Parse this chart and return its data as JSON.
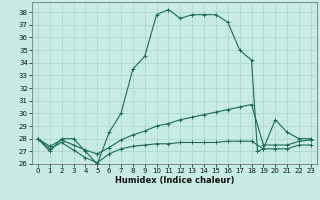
{
  "title": "",
  "xlabel": "Humidex (Indice chaleur)",
  "bg_color": "#c8ece4",
  "grid_color": "#a8d4cc",
  "line_color": "#1a6b5a",
  "xlim": [
    -0.5,
    23.5
  ],
  "ylim": [
    26,
    38.8
  ],
  "yticks": [
    26,
    27,
    28,
    29,
    30,
    31,
    32,
    33,
    34,
    35,
    36,
    37,
    38
  ],
  "xticks": [
    0,
    1,
    2,
    3,
    4,
    5,
    6,
    7,
    8,
    9,
    10,
    11,
    12,
    13,
    14,
    15,
    16,
    17,
    18,
    19,
    20,
    21,
    22,
    23
  ],
  "series1": {
    "x": [
      0,
      1,
      2,
      3,
      4,
      5,
      6,
      7,
      8,
      9,
      10,
      11,
      12,
      13,
      14,
      15,
      16,
      17,
      18,
      18.5,
      19,
      20,
      21,
      22,
      23
    ],
    "y": [
      28,
      27,
      28,
      28,
      27,
      26,
      28.5,
      30,
      33.5,
      34.5,
      37.8,
      38.2,
      37.5,
      37.8,
      37.8,
      37.8,
      37.2,
      35.0,
      34.2,
      27.0,
      27.2,
      29.5,
      28.5,
      28.0,
      28.0
    ]
  },
  "series2": {
    "x": [
      0,
      1,
      2,
      3,
      4,
      5,
      6,
      7,
      8,
      9,
      10,
      11,
      12,
      13,
      14,
      15,
      16,
      17,
      18,
      19,
      20,
      21,
      22,
      23
    ],
    "y": [
      28,
      27.4,
      27.9,
      27.5,
      27.1,
      26.8,
      27.3,
      27.9,
      28.3,
      28.6,
      29.0,
      29.2,
      29.5,
      29.7,
      29.9,
      30.1,
      30.3,
      30.5,
      30.7,
      27.5,
      27.5,
      27.5,
      27.8,
      27.9
    ]
  },
  "series3": {
    "x": [
      0,
      1,
      2,
      3,
      4,
      5,
      6,
      7,
      8,
      9,
      10,
      11,
      12,
      13,
      14,
      15,
      16,
      17,
      18,
      19,
      20,
      21,
      22,
      23
    ],
    "y": [
      28,
      27.2,
      27.7,
      27.1,
      26.5,
      26.1,
      26.8,
      27.2,
      27.4,
      27.5,
      27.6,
      27.6,
      27.7,
      27.7,
      27.7,
      27.7,
      27.8,
      27.8,
      27.8,
      27.2,
      27.2,
      27.2,
      27.5,
      27.5
    ]
  }
}
